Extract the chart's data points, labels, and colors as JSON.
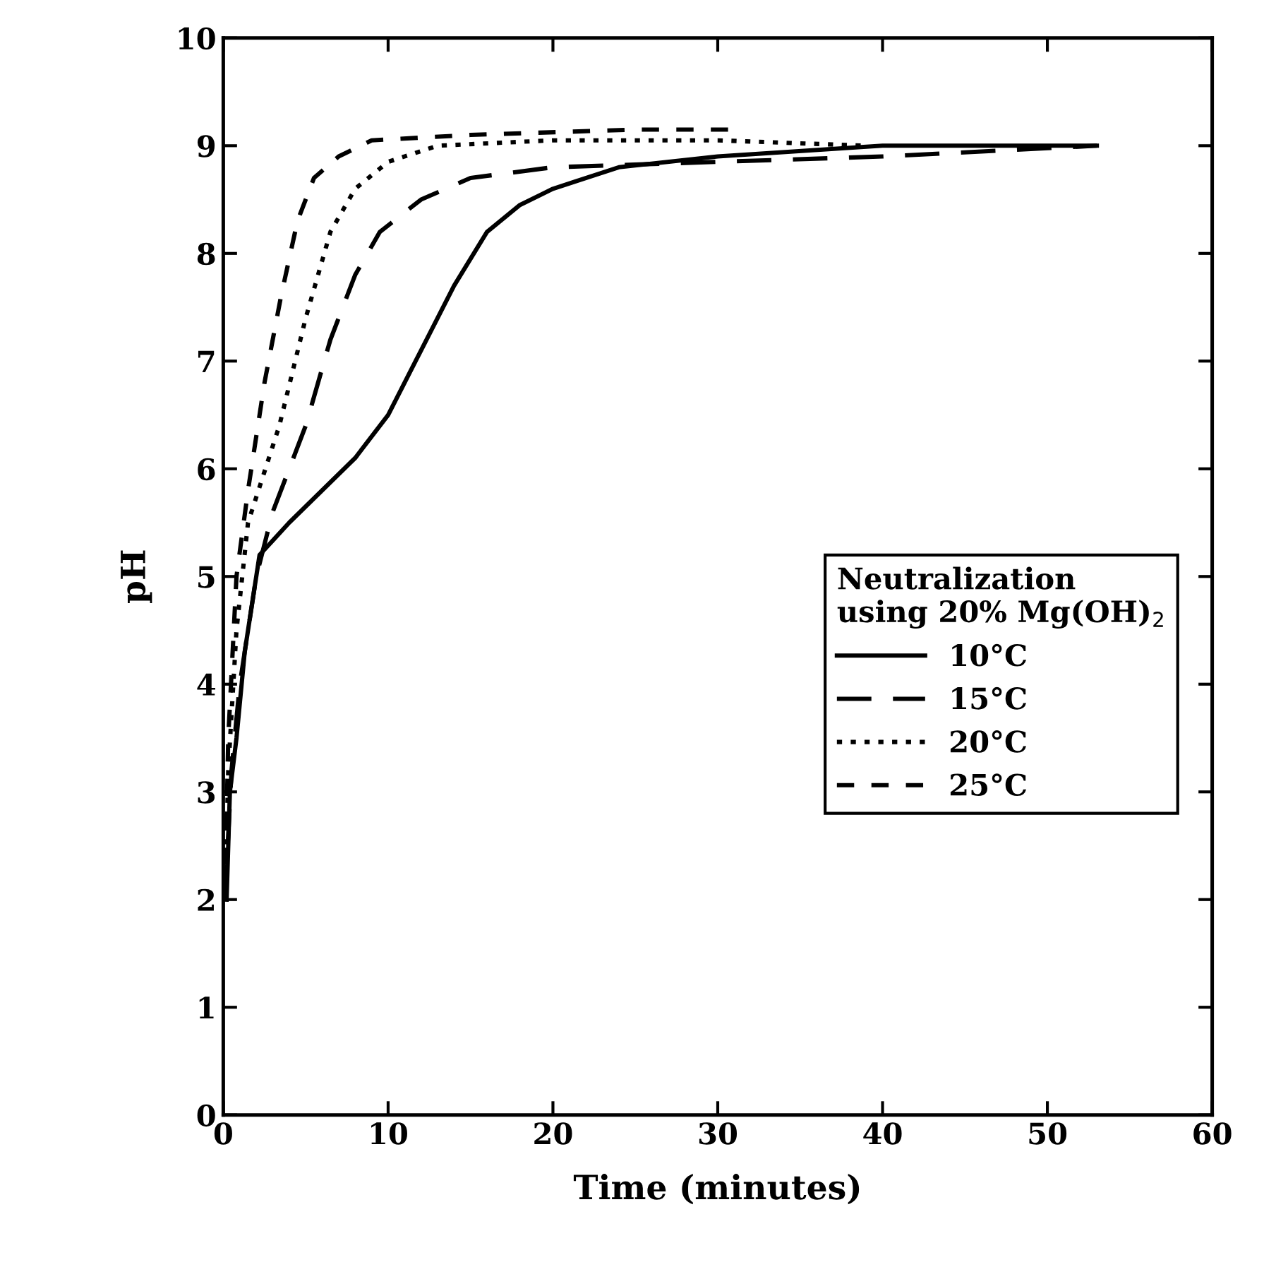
{
  "chart_data": {
    "type": "line",
    "xlabel": "Time (minutes)",
    "ylabel": "pH",
    "legend_title": "Neutralization\nusing 20% Mg(OH)$_{2}$",
    "legend": "right",
    "grid": false,
    "marker": "none",
    "xlim": [
      0,
      60
    ],
    "xticks": [
      0,
      10,
      20,
      30,
      40,
      50,
      60
    ],
    "ylim": [
      0,
      10
    ],
    "yticks": [
      0,
      1,
      2,
      3,
      4,
      5,
      6,
      7,
      8,
      9,
      10
    ],
    "series": [
      {
        "name": "10°C",
        "color": "#000000",
        "line_style": "solid",
        "x": [
          0.2,
          0.4,
          0.8,
          1.3,
          1.8,
          2.2,
          4,
          6,
          8,
          10,
          12,
          14,
          16,
          18,
          20,
          24,
          30,
          40,
          53
        ],
        "values": [
          2.0,
          3.0,
          3.5,
          4.3,
          4.8,
          5.2,
          5.5,
          5.8,
          6.1,
          6.5,
          7.1,
          7.7,
          8.2,
          8.45,
          8.6,
          8.8,
          8.9,
          9.0,
          9.0
        ]
      },
      {
        "name": "15°C",
        "color": "#000000",
        "line_style": "dashed",
        "x": [
          0.1,
          0.5,
          1,
          2,
          3,
          5,
          6.5,
          8,
          9.5,
          12,
          15,
          20,
          30,
          40,
          53
        ],
        "values": [
          2.0,
          3.2,
          4.0,
          5.0,
          5.6,
          6.4,
          7.2,
          7.8,
          8.2,
          8.5,
          8.7,
          8.8,
          8.85,
          8.9,
          9.0
        ]
      },
      {
        "name": "20°C",
        "color": "#000000",
        "line_style": "dotted",
        "x": [
          0.1,
          0.3,
          0.8,
          1.5,
          3.4,
          5,
          6.5,
          8,
          10,
          13,
          20,
          30,
          39
        ],
        "values": [
          2.0,
          3.2,
          4.5,
          5.5,
          6.4,
          7.4,
          8.2,
          8.6,
          8.85,
          9.0,
          9.05,
          9.05,
          9.0
        ]
      },
      {
        "name": "25°C",
        "color": "#000000",
        "line_style": "dashed",
        "x": [
          0.1,
          0.3,
          0.8,
          1.5,
          2.5,
          3.5,
          4.5,
          5.5,
          7,
          9,
          15,
          25,
          31
        ],
        "values": [
          2.0,
          3.5,
          5.0,
          5.8,
          6.8,
          7.6,
          8.3,
          8.7,
          8.9,
          9.05,
          9.1,
          9.15,
          9.15
        ]
      }
    ]
  }
}
